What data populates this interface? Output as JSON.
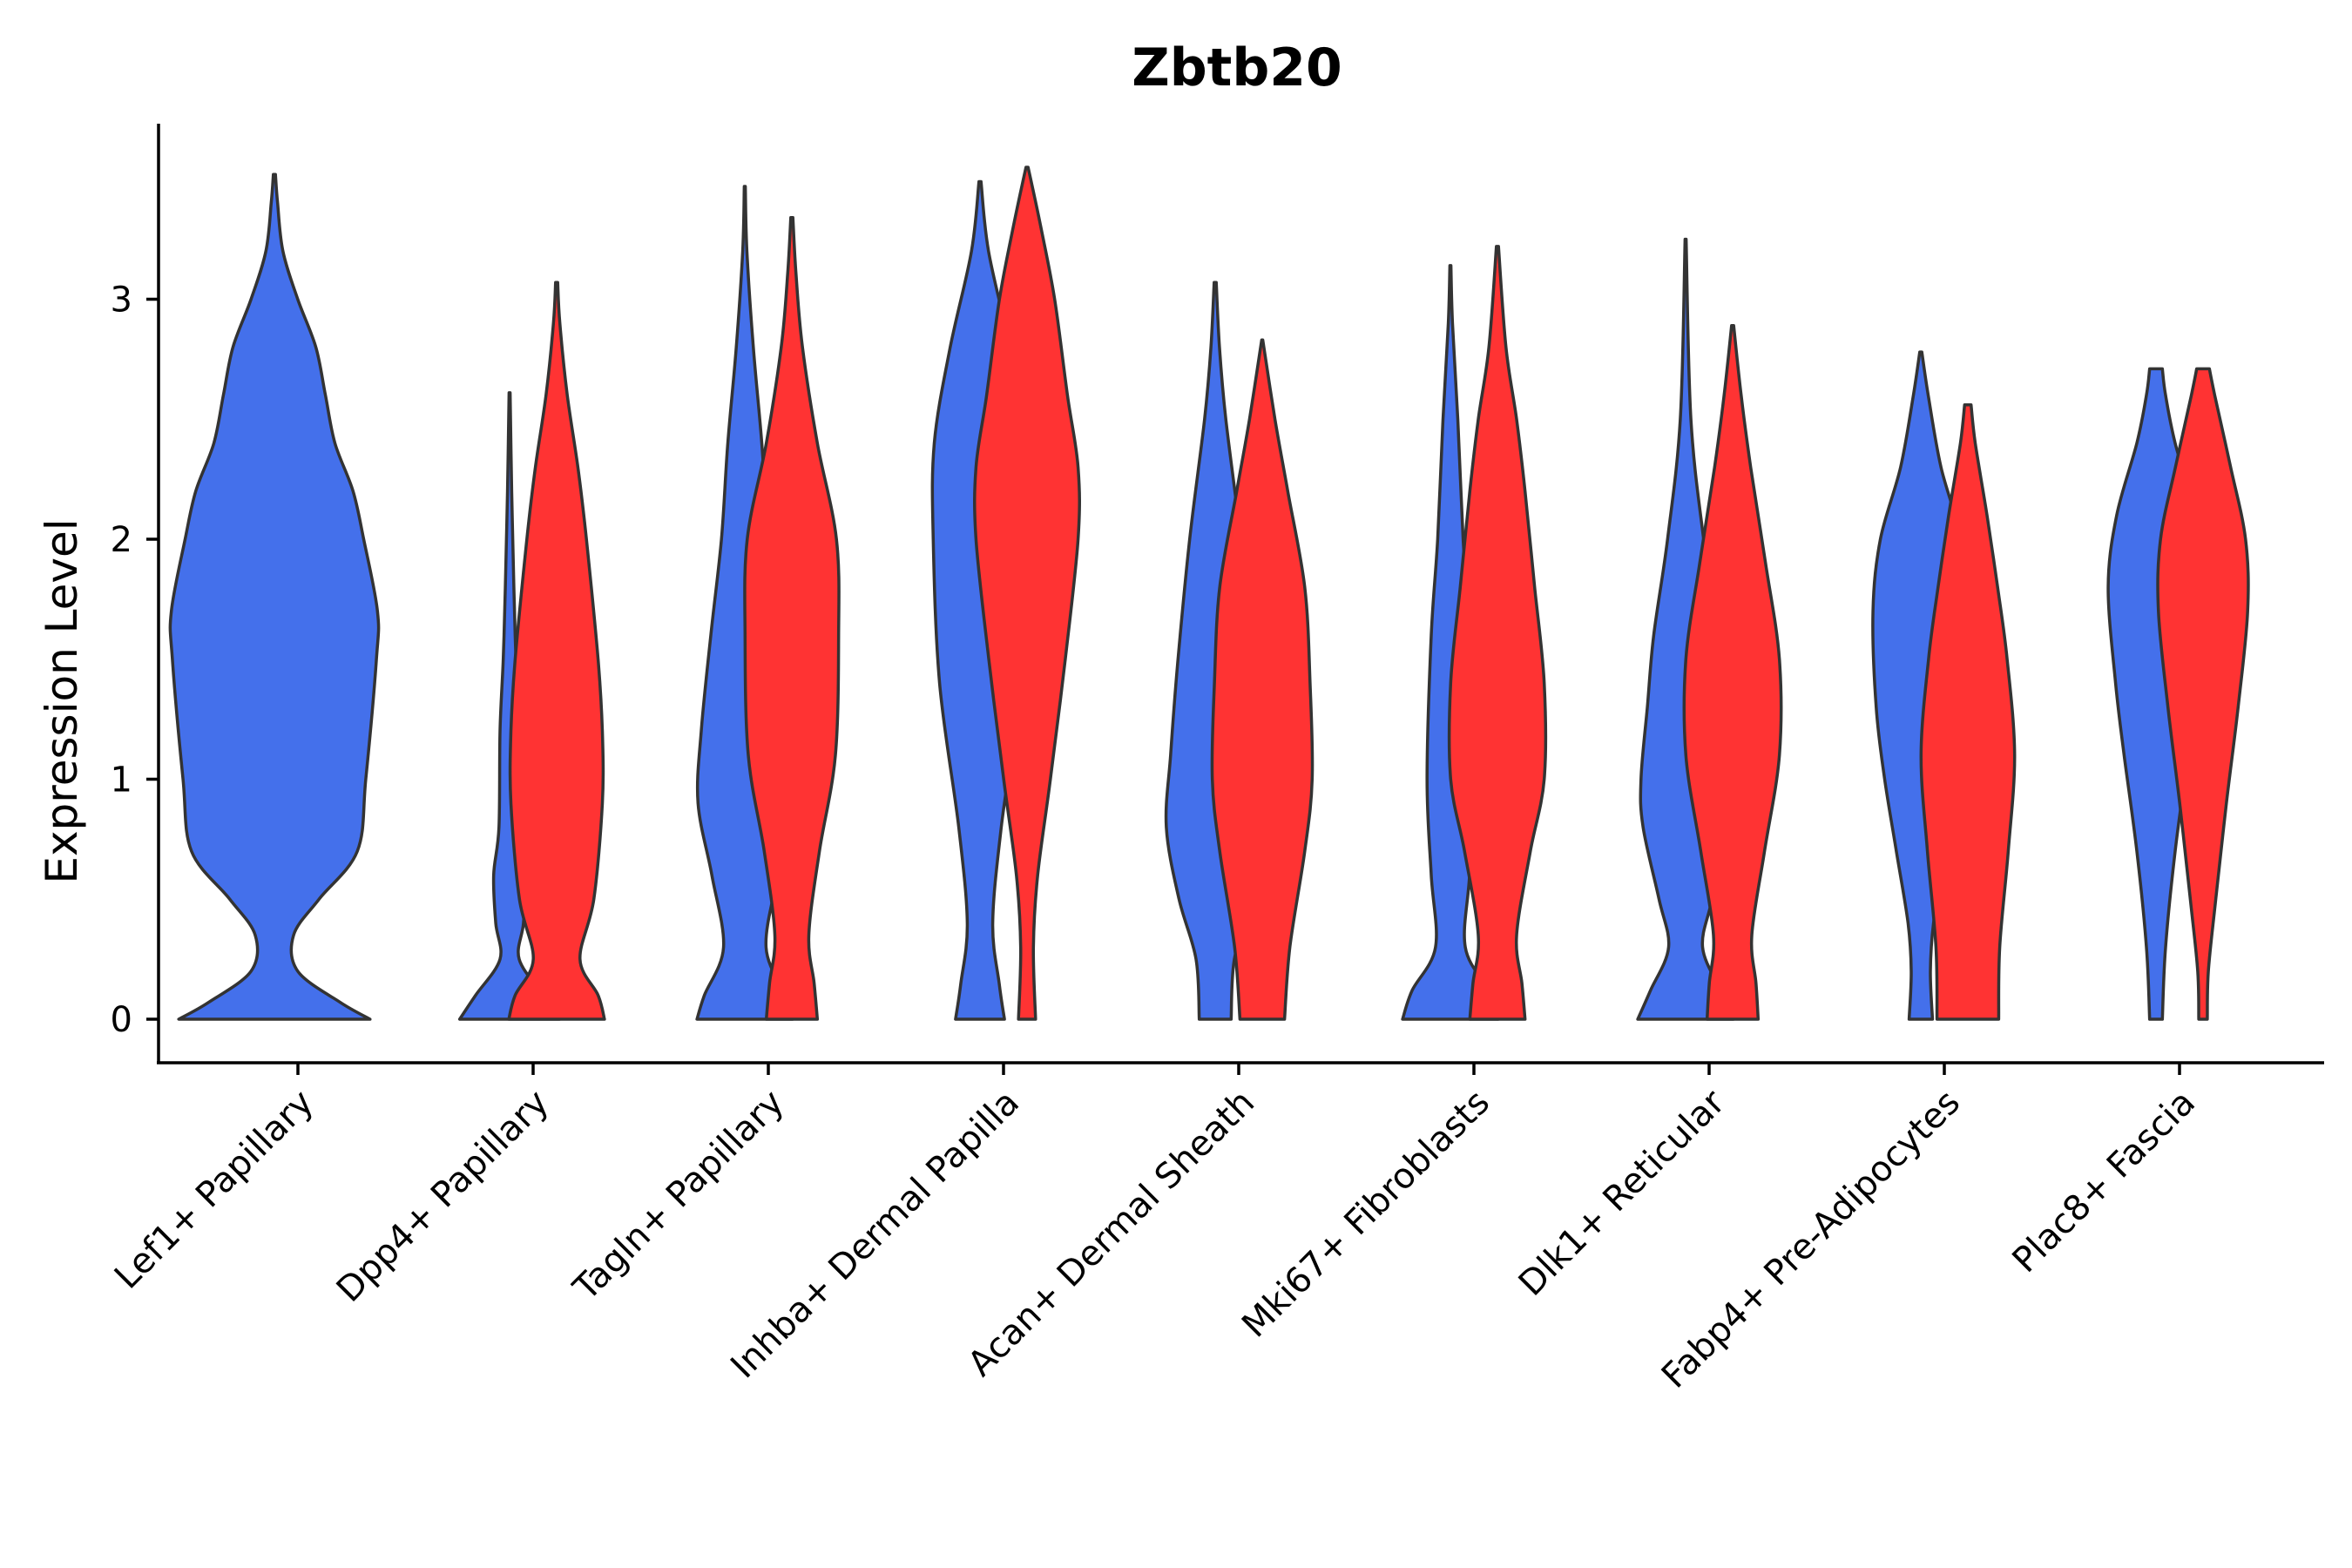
{
  "chart_data": {
    "type": "violin",
    "title": "Zbtb20",
    "ylabel": "Expression Level",
    "xlabel": "",
    "ylim": [
      -0.18,
      3.72
    ],
    "yticks": [
      0,
      1,
      2,
      3
    ],
    "legend": "none",
    "colors": {
      "group_a": "#4470EB",
      "group_b": "#FF3333",
      "outline": "#333333"
    },
    "categories": [
      "Lef1+ Papillary",
      "Dpp4+ Papillary",
      "Tagln+ Papillary",
      "Inhba+ Dermal Papilla",
      "Acan+ Dermal Sheath",
      "Mki67+ Fibroblasts",
      "Dlk1+ Reticular",
      "Fabp4+ Pre-Adipocytes",
      "Plac8+ Fascia"
    ],
    "violins": [
      {
        "category": 0,
        "group": "a",
        "max": 3.52,
        "profile": [
          [
            0,
            0.9
          ],
          [
            0.07,
            0.62
          ],
          [
            0.2,
            0.22
          ],
          [
            0.35,
            0.18
          ],
          [
            0.5,
            0.42
          ],
          [
            0.7,
            0.78
          ],
          [
            1.0,
            0.86
          ],
          [
            1.5,
            0.96
          ],
          [
            1.7,
            0.97
          ],
          [
            2.0,
            0.84
          ],
          [
            2.2,
            0.74
          ],
          [
            2.4,
            0.57
          ],
          [
            2.6,
            0.48
          ],
          [
            2.8,
            0.39
          ],
          [
            3.0,
            0.22
          ],
          [
            3.2,
            0.08
          ],
          [
            3.4,
            0.03
          ],
          [
            3.52,
            0.01
          ]
        ]
      },
      {
        "category": 1,
        "group": "a",
        "max": 2.61,
        "profile": [
          [
            0,
            0.47
          ],
          [
            0.1,
            0.32
          ],
          [
            0.25,
            0.09
          ],
          [
            0.4,
            0.13
          ],
          [
            0.6,
            0.15
          ],
          [
            0.8,
            0.1
          ],
          [
            1.2,
            0.09
          ],
          [
            1.5,
            0.06
          ],
          [
            1.8,
            0.04
          ],
          [
            2.2,
            0.02
          ],
          [
            2.61,
            0.005
          ]
        ]
      },
      {
        "category": 1,
        "group": "b",
        "max": 3.07,
        "profile": [
          [
            0,
            0.45
          ],
          [
            0.1,
            0.39
          ],
          [
            0.25,
            0.22
          ],
          [
            0.5,
            0.35
          ],
          [
            0.9,
            0.43
          ],
          [
            1.2,
            0.43
          ],
          [
            1.5,
            0.39
          ],
          [
            2.0,
            0.28
          ],
          [
            2.3,
            0.2
          ],
          [
            2.6,
            0.1
          ],
          [
            2.9,
            0.03
          ],
          [
            3.07,
            0.01
          ]
        ]
      },
      {
        "category": 2,
        "group": "a",
        "max": 3.47,
        "profile": [
          [
            0,
            0.45
          ],
          [
            0.1,
            0.38
          ],
          [
            0.3,
            0.2
          ],
          [
            0.6,
            0.31
          ],
          [
            0.9,
            0.44
          ],
          [
            1.2,
            0.41
          ],
          [
            1.6,
            0.32
          ],
          [
            2.0,
            0.22
          ],
          [
            2.4,
            0.16
          ],
          [
            2.8,
            0.08
          ],
          [
            3.2,
            0.02
          ],
          [
            3.47,
            0.005
          ]
        ]
      },
      {
        "category": 2,
        "group": "b",
        "max": 3.34,
        "profile": [
          [
            0,
            0.24
          ],
          [
            0.15,
            0.21
          ],
          [
            0.35,
            0.16
          ],
          [
            0.7,
            0.26
          ],
          [
            1.1,
            0.41
          ],
          [
            1.6,
            0.44
          ],
          [
            2.0,
            0.42
          ],
          [
            2.4,
            0.24
          ],
          [
            2.8,
            0.1
          ],
          [
            3.1,
            0.04
          ],
          [
            3.34,
            0.01
          ]
        ]
      },
      {
        "category": 3,
        "group": "a",
        "max": 3.49,
        "profile": [
          [
            0,
            0.23
          ],
          [
            0.15,
            0.18
          ],
          [
            0.4,
            0.12
          ],
          [
            0.8,
            0.2
          ],
          [
            1.4,
            0.38
          ],
          [
            2.0,
            0.44
          ],
          [
            2.4,
            0.43
          ],
          [
            2.8,
            0.28
          ],
          [
            3.2,
            0.08
          ],
          [
            3.49,
            0.01
          ]
        ]
      },
      {
        "category": 3,
        "group": "b",
        "max": 3.55,
        "profile": [
          [
            0,
            0.08
          ],
          [
            0.3,
            0.06
          ],
          [
            0.6,
            0.1
          ],
          [
            1.0,
            0.22
          ],
          [
            1.5,
            0.36
          ],
          [
            2.0,
            0.48
          ],
          [
            2.3,
            0.48
          ],
          [
            2.6,
            0.38
          ],
          [
            3.0,
            0.26
          ],
          [
            3.3,
            0.13
          ],
          [
            3.55,
            0.01
          ]
        ]
      },
      {
        "category": 4,
        "group": "a",
        "max": 3.07,
        "profile": [
          [
            0,
            0.15
          ],
          [
            0.25,
            0.18
          ],
          [
            0.5,
            0.34
          ],
          [
            0.8,
            0.46
          ],
          [
            1.1,
            0.42
          ],
          [
            1.5,
            0.35
          ],
          [
            2.0,
            0.24
          ],
          [
            2.5,
            0.1
          ],
          [
            2.8,
            0.04
          ],
          [
            3.07,
            0.01
          ]
        ]
      },
      {
        "category": 4,
        "group": "b",
        "max": 2.83,
        "profile": [
          [
            0,
            0.21
          ],
          [
            0.3,
            0.26
          ],
          [
            0.7,
            0.4
          ],
          [
            1.0,
            0.47
          ],
          [
            1.4,
            0.45
          ],
          [
            1.8,
            0.4
          ],
          [
            2.2,
            0.24
          ],
          [
            2.5,
            0.12
          ],
          [
            2.83,
            0.005
          ]
        ]
      },
      {
        "category": 5,
        "group": "a",
        "max": 3.14,
        "profile": [
          [
            0,
            0.45
          ],
          [
            0.12,
            0.36
          ],
          [
            0.3,
            0.14
          ],
          [
            0.6,
            0.18
          ],
          [
            1.0,
            0.22
          ],
          [
            1.6,
            0.18
          ],
          [
            2.0,
            0.12
          ],
          [
            2.5,
            0.07
          ],
          [
            2.9,
            0.02
          ],
          [
            3.14,
            0.005
          ]
        ]
      },
      {
        "category": 5,
        "group": "b",
        "max": 3.22,
        "profile": [
          [
            0,
            0.26
          ],
          [
            0.15,
            0.23
          ],
          [
            0.35,
            0.18
          ],
          [
            0.7,
            0.31
          ],
          [
            1.0,
            0.44
          ],
          [
            1.4,
            0.44
          ],
          [
            1.8,
            0.35
          ],
          [
            2.2,
            0.26
          ],
          [
            2.5,
            0.18
          ],
          [
            2.8,
            0.08
          ],
          [
            3.22,
            0.01
          ]
        ]
      },
      {
        "category": 6,
        "group": "a",
        "max": 3.25,
        "profile": [
          [
            0,
            0.45
          ],
          [
            0.12,
            0.33
          ],
          [
            0.3,
            0.16
          ],
          [
            0.5,
            0.25
          ],
          [
            0.8,
            0.4
          ],
          [
            1.0,
            0.42
          ],
          [
            1.3,
            0.36
          ],
          [
            1.6,
            0.3
          ],
          [
            2.0,
            0.17
          ],
          [
            2.5,
            0.05
          ],
          [
            3.25,
            0.005
          ]
        ]
      },
      {
        "category": 6,
        "group": "b",
        "max": 2.89,
        "profile": [
          [
            0,
            0.24
          ],
          [
            0.15,
            0.22
          ],
          [
            0.35,
            0.18
          ],
          [
            0.7,
            0.3
          ],
          [
            1.1,
            0.44
          ],
          [
            1.5,
            0.44
          ],
          [
            1.9,
            0.31
          ],
          [
            2.3,
            0.17
          ],
          [
            2.6,
            0.08
          ],
          [
            2.89,
            0.01
          ]
        ]
      },
      {
        "category": 7,
        "group": "a",
        "max": 2.78,
        "profile": [
          [
            0,
            0.11
          ],
          [
            0.2,
            0.09
          ],
          [
            0.4,
            0.12
          ],
          [
            0.7,
            0.23
          ],
          [
            1.0,
            0.34
          ],
          [
            1.3,
            0.42
          ],
          [
            1.7,
            0.45
          ],
          [
            2.0,
            0.38
          ],
          [
            2.3,
            0.19
          ],
          [
            2.6,
            0.07
          ],
          [
            2.78,
            0.01
          ]
        ]
      },
      {
        "category": 7,
        "group": "b",
        "max": 2.56,
        "profile": [
          [
            0,
            0.29
          ],
          [
            0.3,
            0.3
          ],
          [
            0.7,
            0.38
          ],
          [
            1.1,
            0.44
          ],
          [
            1.5,
            0.37
          ],
          [
            1.8,
            0.28
          ],
          [
            2.1,
            0.18
          ],
          [
            2.4,
            0.07
          ],
          [
            2.56,
            0.03
          ]
        ]
      },
      {
        "category": 8,
        "group": "a",
        "max": 2.71,
        "profile": [
          [
            0,
            0.06
          ],
          [
            0.3,
            0.09
          ],
          [
            0.7,
            0.18
          ],
          [
            1.1,
            0.3
          ],
          [
            1.4,
            0.38
          ],
          [
            1.8,
            0.45
          ],
          [
            2.1,
            0.37
          ],
          [
            2.4,
            0.18
          ],
          [
            2.6,
            0.09
          ],
          [
            2.71,
            0.06
          ]
        ]
      },
      {
        "category": 8,
        "group": "b",
        "max": 2.71,
        "profile": [
          [
            0,
            0.04
          ],
          [
            0.2,
            0.05
          ],
          [
            0.5,
            0.12
          ],
          [
            0.9,
            0.22
          ],
          [
            1.3,
            0.33
          ],
          [
            1.7,
            0.42
          ],
          [
            2.0,
            0.4
          ],
          [
            2.3,
            0.26
          ],
          [
            2.6,
            0.11
          ],
          [
            2.71,
            0.06
          ]
        ]
      }
    ]
  }
}
